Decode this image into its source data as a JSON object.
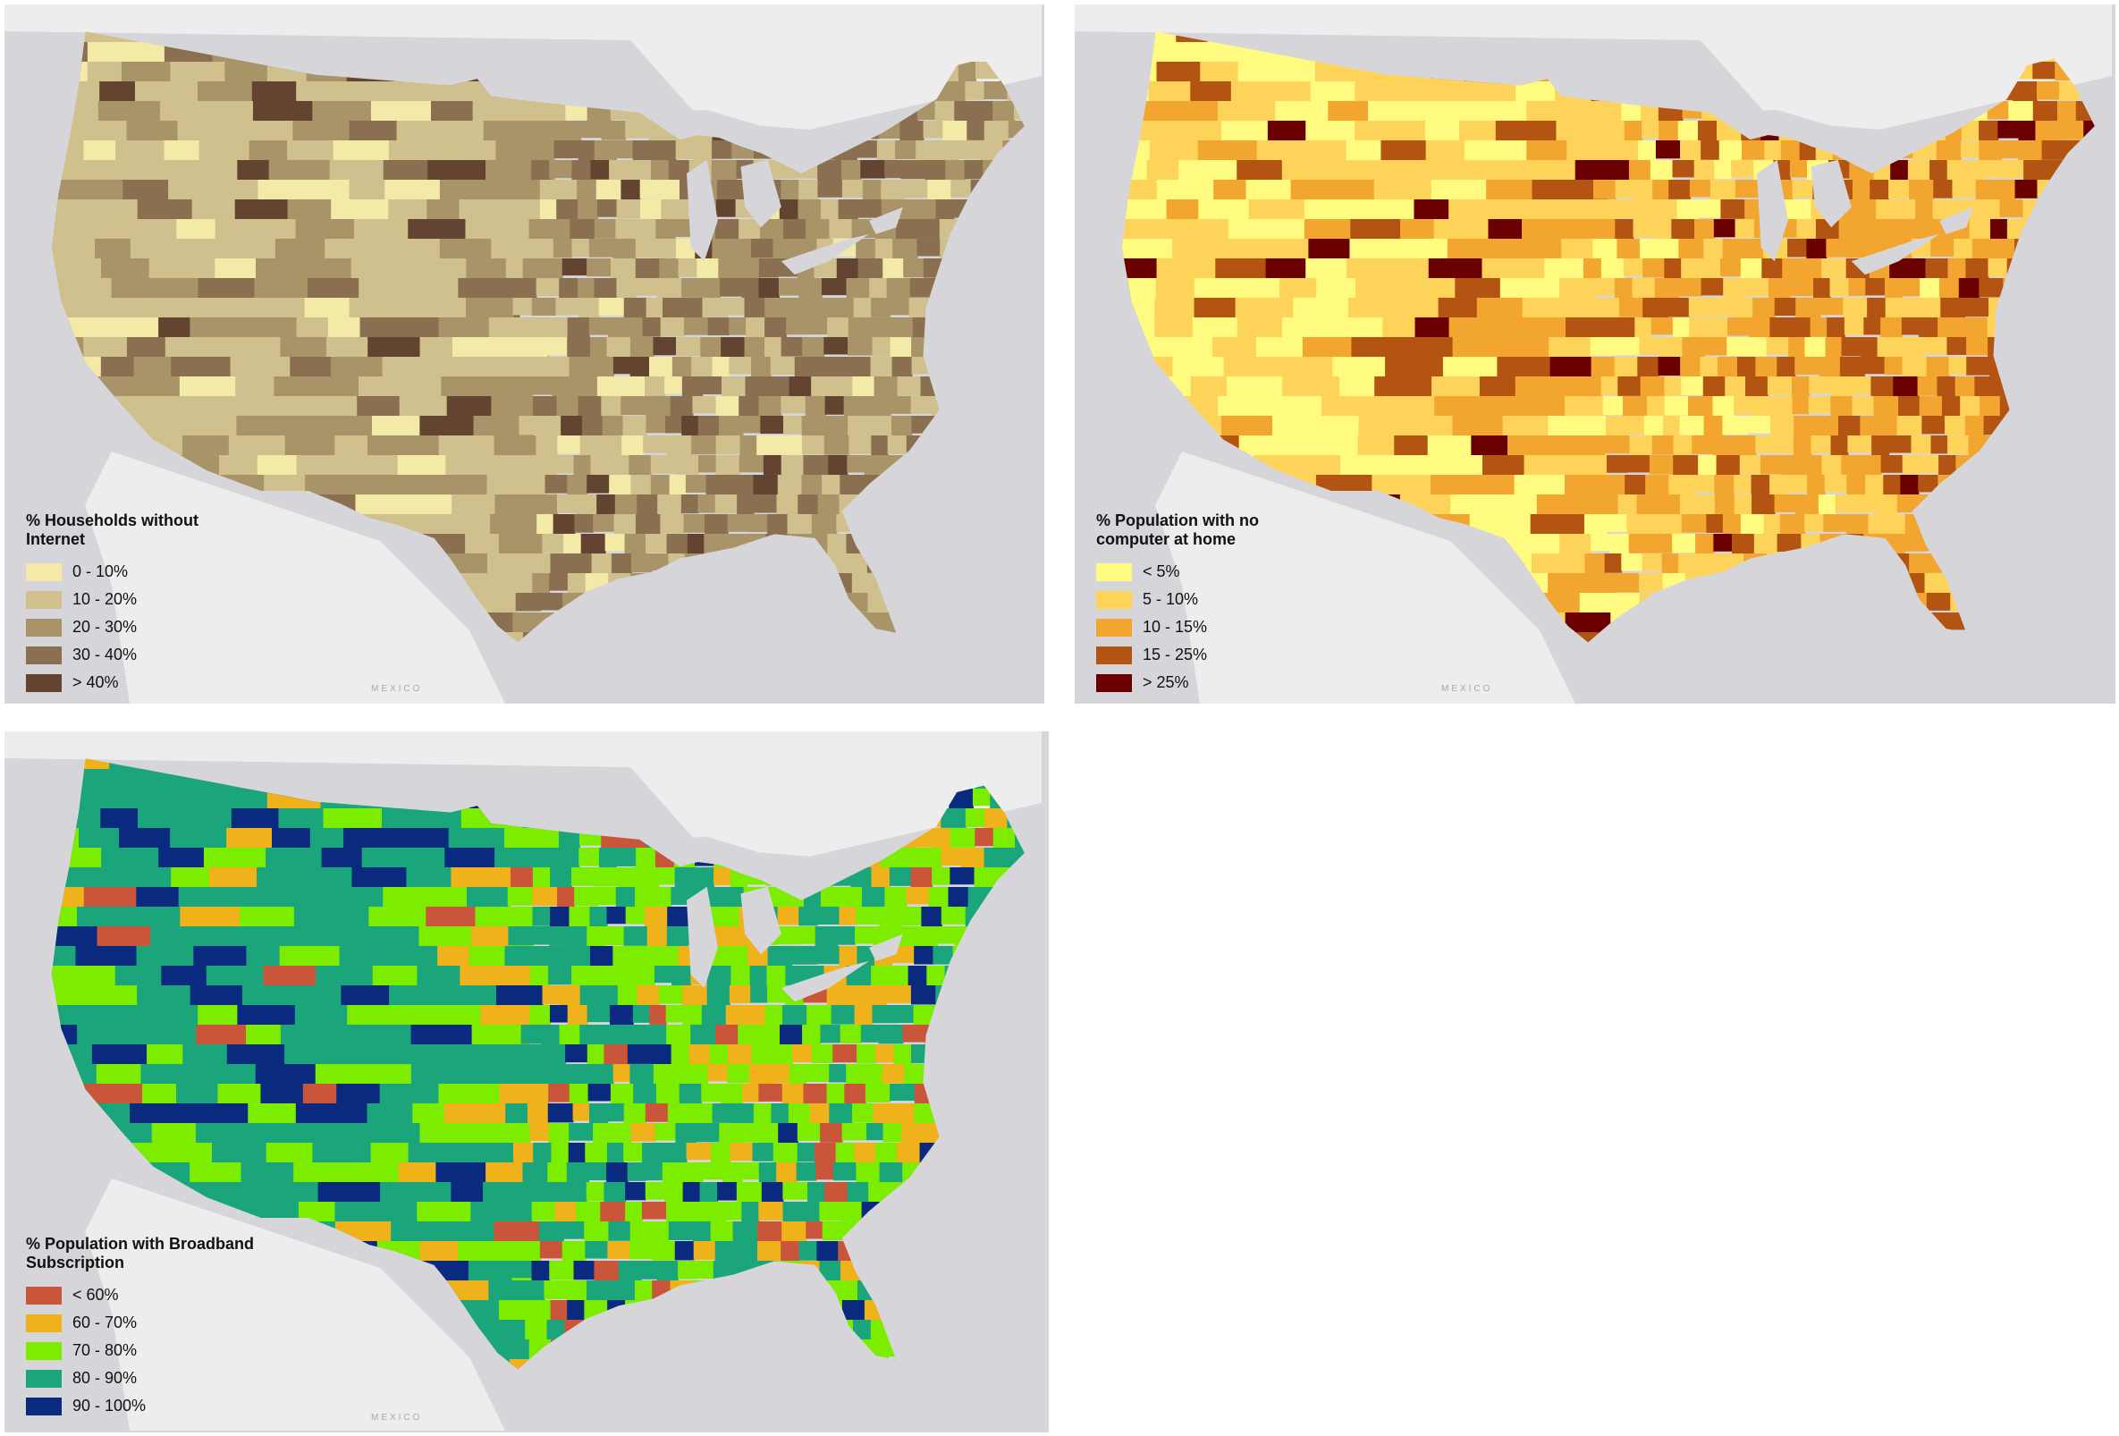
{
  "maps": [
    {
      "legend_title": "% Households without Internet",
      "classes": [
        {
          "label": "0 - 10%",
          "color": "#f2eaa6"
        },
        {
          "label": "10 - 20%",
          "color": "#cfc08d"
        },
        {
          "label": "20 - 30%",
          "color": "#a89468"
        },
        {
          "label": "30 - 40%",
          "color": "#8a7050"
        },
        {
          "label": "> 40%",
          "color": "#634430"
        }
      ]
    },
    {
      "legend_title": "% Population with no computer at home",
      "classes": [
        {
          "label": "< 5%",
          "color": "#fffb80"
        },
        {
          "label": "5 - 10%",
          "color": "#fdd35a"
        },
        {
          "label": "10 - 15%",
          "color": "#f2a630"
        },
        {
          "label": "15 - 25%",
          "color": "#b35412"
        },
        {
          "label": "> 25%",
          "color": "#6a0000"
        }
      ]
    },
    {
      "legend_title": "% Population with Broadband Subscription",
      "classes": [
        {
          "label": "< 60%",
          "color": "#c9553b"
        },
        {
          "label": "60 - 70%",
          "color": "#efb21a"
        },
        {
          "label": "70 - 80%",
          "color": "#7ded00"
        },
        {
          "label": "80 - 90%",
          "color": "#1aa57a"
        },
        {
          "label": "90 - 100%",
          "color": "#0a2a80"
        }
      ]
    }
  ],
  "basemap": {
    "water": "#d6d6da",
    "land": "#ededee",
    "country_label": "MEXICO"
  }
}
